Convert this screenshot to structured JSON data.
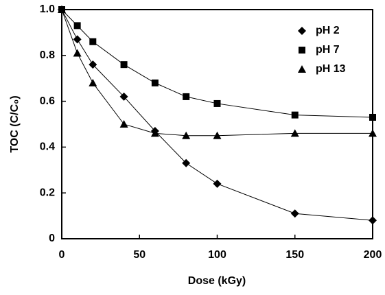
{
  "chart_data": {
    "type": "line",
    "x_label": "Dose (kGy)",
    "y_label": "TOC (C/C₀)",
    "x": [
      0,
      10,
      20,
      40,
      60,
      80,
      100,
      150,
      200
    ],
    "series": [
      {
        "name": "pH 2",
        "color": "#000000",
        "marker": "diamond",
        "values": [
          1.0,
          0.87,
          0.76,
          0.62,
          0.47,
          0.33,
          0.24,
          0.11,
          0.08
        ]
      },
      {
        "name": "pH 7",
        "color": "#000000",
        "marker": "square",
        "values": [
          1.0,
          0.93,
          0.86,
          0.76,
          0.68,
          0.62,
          0.59,
          0.54,
          0.53
        ]
      },
      {
        "name": "pH 13",
        "color": "#000000",
        "marker": "triangle",
        "values": [
          1.0,
          0.81,
          0.68,
          0.5,
          0.46,
          0.45,
          0.45,
          0.46,
          0.46
        ]
      }
    ],
    "xlim": [
      0,
      200
    ],
    "xticks": [
      0,
      50,
      100,
      150,
      200
    ],
    "ylim": [
      0,
      1
    ],
    "yticks": [
      0,
      0.2,
      0.4,
      0.6,
      0.8,
      {
        "value": 1,
        "label": "1.0"
      }
    ],
    "legend": "upper right",
    "grid": false
  }
}
